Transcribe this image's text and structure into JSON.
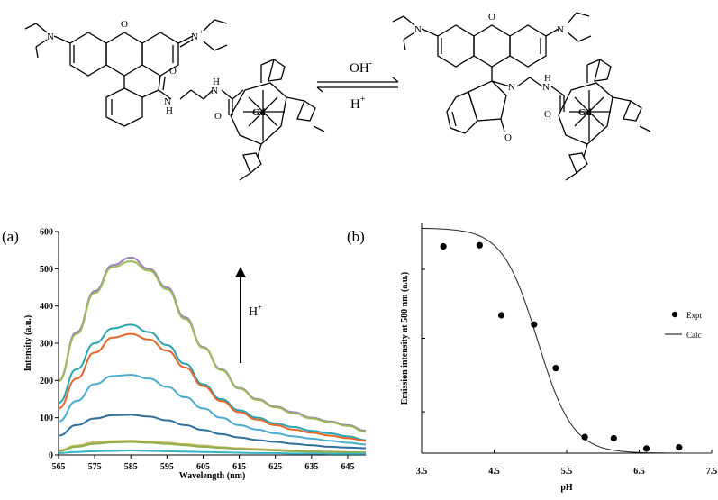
{
  "scheme": {
    "forward_label": "OH",
    "forward_sup": "-",
    "reverse_label": "H",
    "reverse_sup": "+",
    "atoms": {
      "N": "N",
      "N_plus": "N",
      "plus": "+",
      "O": "O",
      "H": "H",
      "Gd": "Gd"
    }
  },
  "panel_a": {
    "label": "(a)",
    "arrow_label": "H",
    "arrow_sup": "+"
  },
  "panel_b": {
    "label": "(b)"
  },
  "colors": {
    "purple": "#9b7fb8",
    "green": "#9bbb59",
    "teal": "#2aa3b0",
    "orange": "#e3672a",
    "blue1": "#4aaccf",
    "blue2": "#2e6f9a",
    "gold": "#c8b45a",
    "olive": "#8fae4d",
    "cyan": "#37b3c6"
  },
  "chart_data": [
    {
      "type": "line",
      "xlabel": "Wavelength (nm)",
      "ylabel": "Intensity (a.u.)",
      "xlim": [
        565,
        650
      ],
      "ylim": [
        0,
        600
      ],
      "xticks": [
        565,
        575,
        585,
        595,
        605,
        615,
        625,
        635,
        645
      ],
      "yticks": [
        0,
        100,
        200,
        300,
        400,
        500,
        600
      ],
      "x": [
        565,
        570,
        575,
        580,
        585,
        590,
        595,
        600,
        605,
        610,
        615,
        620,
        625,
        630,
        635,
        640,
        645,
        650
      ],
      "series": [
        {
          "color": "#9b7fb8",
          "values": [
            200,
            330,
            440,
            510,
            530,
            500,
            450,
            370,
            290,
            230,
            180,
            150,
            130,
            115,
            100,
            90,
            80,
            65
          ]
        },
        {
          "color": "#9bbb59",
          "values": [
            198,
            325,
            435,
            505,
            520,
            495,
            445,
            365,
            288,
            228,
            178,
            148,
            128,
            112,
            98,
            88,
            78,
            62
          ]
        },
        {
          "color": "#2aa3b0",
          "values": [
            140,
            230,
            300,
            340,
            350,
            330,
            295,
            245,
            190,
            150,
            120,
            100,
            85,
            75,
            65,
            58,
            50,
            40
          ]
        },
        {
          "color": "#e3672a",
          "values": [
            125,
            205,
            275,
            315,
            325,
            310,
            280,
            235,
            185,
            145,
            115,
            95,
            80,
            68,
            60,
            52,
            45,
            38
          ]
        },
        {
          "color": "#4aaccf",
          "values": [
            90,
            145,
            190,
            212,
            215,
            205,
            183,
            155,
            125,
            100,
            80,
            68,
            58,
            50,
            44,
            38,
            33,
            28
          ]
        },
        {
          "color": "#2e6f9a",
          "values": [
            52,
            80,
            98,
            107,
            108,
            103,
            93,
            80,
            67,
            56,
            47,
            40,
            35,
            30,
            26,
            22,
            20,
            18
          ]
        },
        {
          "color": "#c8b45a",
          "values": [
            12,
            25,
            34,
            37,
            38,
            36,
            33,
            29,
            25,
            21,
            18,
            16,
            14,
            12,
            10,
            9,
            8,
            7
          ]
        },
        {
          "color": "#8fae4d",
          "values": [
            10,
            22,
            30,
            34,
            35,
            33,
            30,
            26,
            22,
            19,
            16,
            14,
            12,
            10,
            9,
            8,
            7,
            6
          ]
        },
        {
          "color": "#37b3c6",
          "values": [
            5,
            8,
            10,
            11,
            12,
            11,
            10,
            9,
            8,
            7,
            6,
            5,
            5,
            4,
            4,
            3,
            3,
            3
          ]
        }
      ]
    },
    {
      "type": "scatter",
      "xlabel": "pH",
      "ylabel": "Emission intensity at 580 nm (a.u.)",
      "xlim": [
        3.5,
        7.5
      ],
      "ylim": [
        0,
        1
      ],
      "xticks": [
        3.5,
        4.5,
        5.5,
        6.5,
        7.5
      ],
      "legend_position": "right",
      "series": [
        {
          "name": "Expt",
          "x": [
            3.8,
            4.3,
            4.6,
            5.05,
            5.35,
            5.75,
            6.15,
            6.6,
            7.05
          ],
          "y": [
            0.9,
            0.905,
            0.6,
            0.56,
            0.37,
            0.07,
            0.065,
            0.02,
            0.025
          ]
        },
        {
          "name": "Calc",
          "fit": {
            "top": 0.98,
            "pKa": 5.1,
            "slope": 1.8
          }
        }
      ]
    }
  ]
}
